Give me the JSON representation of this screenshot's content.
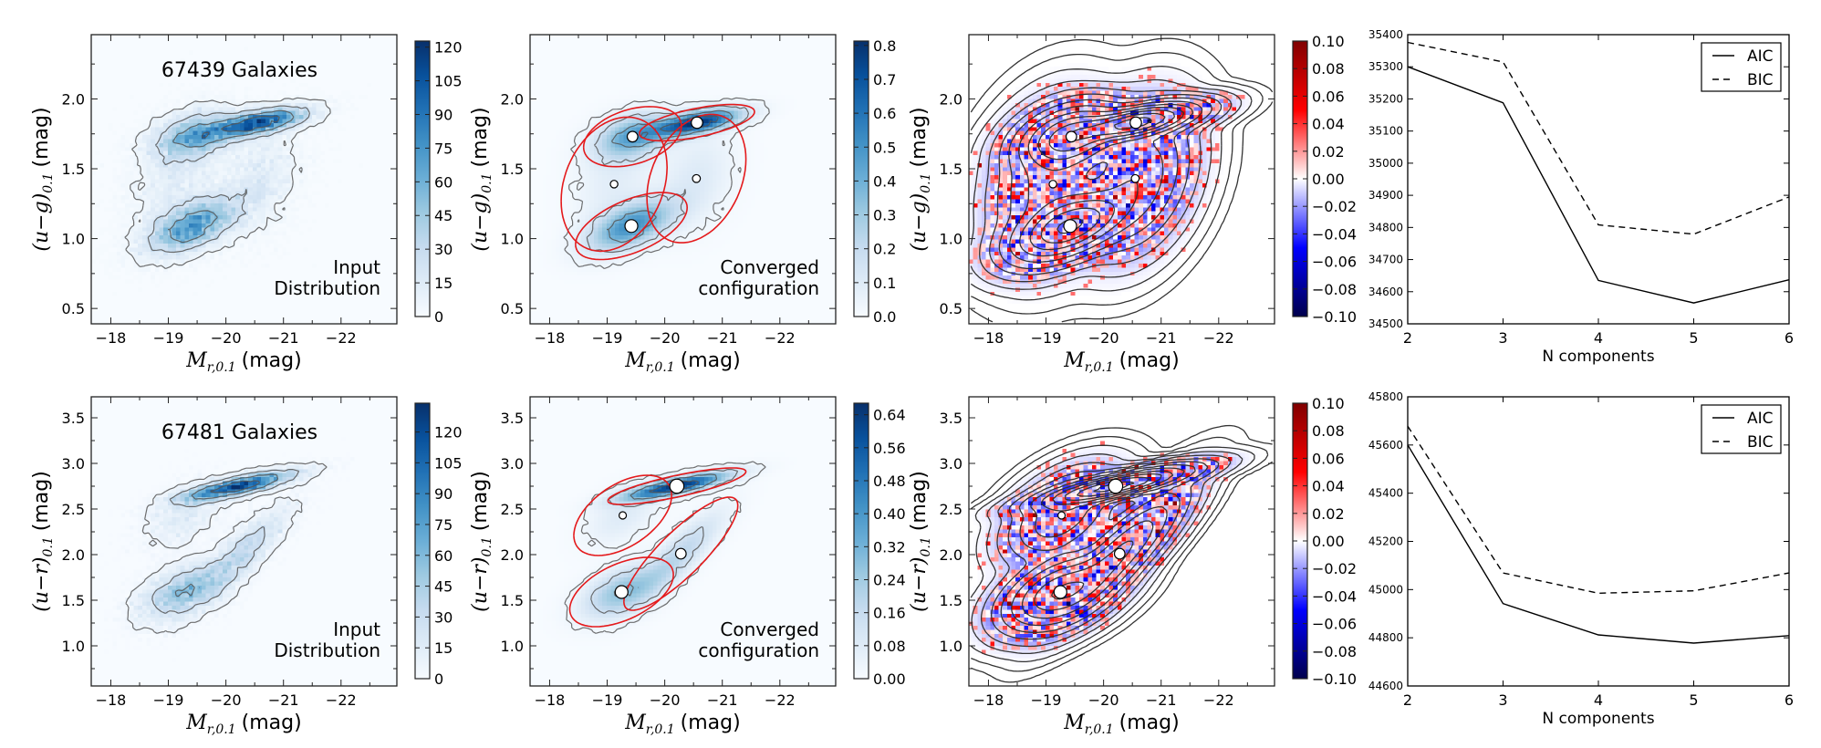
{
  "colormaps": {
    "Blues": [
      "#f7fbff",
      "#deebf7",
      "#c6dbef",
      "#9ecae1",
      "#6baed6",
      "#4292c6",
      "#2171b5",
      "#08519c",
      "#08306b"
    ],
    "seismic": [
      "#00004c",
      "#0000ff",
      "#ffffff",
      "#ff0000",
      "#800000"
    ],
    "contour_input": "#555555",
    "contour_model": "#333333",
    "ellipse": "#e41a1c"
  },
  "chart_data": [
    {
      "type": "heatmap",
      "panel": "input",
      "row": 0,
      "annotation": "67439 Galaxies",
      "label_lines": [
        "Input",
        "Distribution"
      ],
      "xlabel": {
        "symbol": "M",
        "subscript": "r,0.1",
        "unit": "(mag)"
      },
      "ylabel": {
        "symbol": "(u−g)",
        "subscript": "0.1",
        "unit": "(mag)"
      },
      "xlim": [
        -17.66,
        -22.97
      ],
      "ylim": [
        0.39,
        2.46
      ],
      "xticks": [
        -18,
        -19,
        -20,
        -21,
        -22
      ],
      "xtick_labels": [
        "−18",
        "−19",
        "−20",
        "−21",
        "−22"
      ],
      "yticks": [
        0.5,
        1.0,
        1.5,
        2.0
      ],
      "ytick_labels": [
        "0.5",
        "1.0",
        "1.5",
        "2.0"
      ],
      "colormap": "Blues",
      "contours": true,
      "colorbar": {
        "range": [
          0,
          122.7
        ],
        "ticks": [
          0,
          15,
          30,
          45,
          60,
          75,
          90,
          105,
          120
        ],
        "tick_labels": [
          "0",
          "15",
          "30",
          "45",
          "60",
          "75",
          "90",
          "105",
          "120"
        ]
      }
    },
    {
      "type": "heatmap",
      "panel": "model",
      "row": 0,
      "label_lines": [
        "Converged",
        "configuration"
      ],
      "xlabel": {
        "symbol": "M",
        "subscript": "r,0.1",
        "unit": "(mag)"
      },
      "ylabel": {
        "symbol": "(u−g)",
        "subscript": "0.1",
        "unit": "(mag)"
      },
      "xlim": [
        -17.66,
        -22.97
      ],
      "ylim": [
        0.39,
        2.46
      ],
      "xticks": [
        -18,
        -19,
        -20,
        -21,
        -22
      ],
      "xtick_labels": [
        "−18",
        "−19",
        "−20",
        "−21",
        "−22"
      ],
      "yticks": [
        0.5,
        1.0,
        1.5,
        2.0
      ],
      "ytick_labels": [
        "0.5",
        "1.0",
        "1.5",
        "2.0"
      ],
      "colormap": "Blues",
      "contours": true,
      "colorbar": {
        "range": [
          0,
          0.813
        ],
        "ticks": [
          0,
          0.1,
          0.2,
          0.3,
          0.4,
          0.5,
          0.6,
          0.7,
          0.8
        ],
        "tick_labels": [
          "0.0",
          "0.1",
          "0.2",
          "0.3",
          "0.4",
          "0.5",
          "0.6",
          "0.7",
          "0.8"
        ]
      },
      "components": [
        {
          "mean": [
            -19.44,
            1.73
          ],
          "semi_axes": [
            0.85,
            0.215
          ],
          "correlation": -0.35,
          "weight": 0.22
        },
        {
          "mean": [
            -20.56,
            1.83
          ],
          "semi_axes": [
            1.0,
            0.13
          ],
          "correlation": -0.6,
          "weight": 0.25
        },
        {
          "mean": [
            -19.12,
            1.39
          ],
          "semi_axes": [
            0.92,
            0.48
          ],
          "correlation": -0.25,
          "weight": 0.11
        },
        {
          "mean": [
            -19.42,
            1.09
          ],
          "semi_axes": [
            0.97,
            0.24
          ],
          "correlation": -0.55,
          "weight": 0.3
        },
        {
          "mean": [
            -20.55,
            1.43
          ],
          "semi_axes": [
            0.86,
            0.46
          ],
          "correlation": -0.3,
          "weight": 0.12
        }
      ]
    },
    {
      "type": "heatmap",
      "panel": "residual",
      "row": 0,
      "xlabel": {
        "symbol": "M",
        "subscript": "r,0.1",
        "unit": "(mag)"
      },
      "ylabel": {
        "symbol": "(u−g)",
        "subscript": "0.1",
        "unit": "(mag)"
      },
      "xlim": [
        -17.66,
        -22.97
      ],
      "ylim": [
        0.39,
        2.46
      ],
      "xticks": [
        -18,
        -19,
        -20,
        -21,
        -22
      ],
      "xtick_labels": [
        "−18",
        "−19",
        "−20",
        "−21",
        "−22"
      ],
      "yticks": [
        0.5,
        1.0,
        1.5,
        2.0
      ],
      "ytick_labels": [
        "0.5",
        "1.0",
        "1.5",
        "2.0"
      ],
      "colormap": "seismic",
      "colorbar": {
        "range": [
          -0.1,
          0.1
        ],
        "ticks": [
          0.1,
          0.08,
          0.06,
          0.04,
          0.02,
          0.0,
          -0.02,
          -0.04,
          -0.06,
          -0.08,
          -0.1
        ],
        "tick_labels": [
          "0.10",
          "0.08",
          "0.06",
          "0.04",
          "0.02",
          "0.00",
          "−0.02",
          "−0.04",
          "−0.06",
          "−0.08",
          "−0.10"
        ]
      }
    },
    {
      "type": "line",
      "panel": "selection",
      "row": 0,
      "xlabel": "N components",
      "x": [
        2,
        3,
        4,
        5,
        6
      ],
      "xtick_labels": [
        "2",
        "3",
        "4",
        "5",
        "6"
      ],
      "ylim": [
        34500,
        35400
      ],
      "yticks": [
        34500,
        34600,
        34700,
        34800,
        34900,
        35000,
        35100,
        35200,
        35300,
        35400
      ],
      "ytick_labels": [
        "34500",
        "34600",
        "34700",
        "34800",
        "34900",
        "35000",
        "35100",
        "35200",
        "35300",
        "35400"
      ],
      "legend": "top-right",
      "series": [
        {
          "name": "AIC",
          "style": "solid",
          "values": [
            35300,
            35188,
            34635,
            34565,
            34637
          ]
        },
        {
          "name": "BIC",
          "style": "dashed",
          "values": [
            35376,
            35315,
            34808,
            34779,
            34895
          ]
        }
      ]
    },
    {
      "type": "heatmap",
      "panel": "input",
      "row": 1,
      "annotation": "67481 Galaxies",
      "label_lines": [
        "Input",
        "Distribution"
      ],
      "xlabel": {
        "symbol": "M",
        "subscript": "r,0.1",
        "unit": "(mag)"
      },
      "ylabel": {
        "symbol": "(u−r)",
        "subscript": "0.1",
        "unit": "(mag)"
      },
      "xlim": [
        -17.66,
        -22.97
      ],
      "ylim": [
        0.56,
        3.73
      ],
      "xticks": [
        -18,
        -19,
        -20,
        -21,
        -22
      ],
      "xtick_labels": [
        "−18",
        "−19",
        "−20",
        "−21",
        "−22"
      ],
      "yticks": [
        1.0,
        1.5,
        2.0,
        2.5,
        3.0,
        3.5
      ],
      "ytick_labels": [
        "1.0",
        "1.5",
        "2.0",
        "2.5",
        "3.0",
        "3.5"
      ],
      "colormap": "Blues",
      "contours": true,
      "colorbar": {
        "range": [
          0,
          134
        ],
        "ticks": [
          0,
          15,
          30,
          45,
          60,
          75,
          90,
          105,
          120
        ],
        "tick_labels": [
          "0",
          "15",
          "30",
          "45",
          "60",
          "75",
          "90",
          "105",
          "120"
        ]
      }
    },
    {
      "type": "heatmap",
      "panel": "model",
      "row": 1,
      "label_lines": [
        "Converged",
        "configuration"
      ],
      "xlabel": {
        "symbol": "M",
        "subscript": "r,0.1",
        "unit": "(mag)"
      },
      "ylabel": {
        "symbol": "(u−r)",
        "subscript": "0.1",
        "unit": "(mag)"
      },
      "xlim": [
        -17.66,
        -22.97
      ],
      "ylim": [
        0.56,
        3.73
      ],
      "xticks": [
        -18,
        -19,
        -20,
        -21,
        -22
      ],
      "xtick_labels": [
        "−18",
        "−19",
        "−20",
        "−21",
        "−22"
      ],
      "yticks": [
        1.0,
        1.5,
        2.0,
        2.5,
        3.0,
        3.5
      ],
      "ytick_labels": [
        "1.0",
        "1.5",
        "2.0",
        "2.5",
        "3.0",
        "3.5"
      ],
      "colormap": "Blues",
      "contours": true,
      "colorbar": {
        "range": [
          0,
          0.668
        ],
        "ticks": [
          0,
          0.08,
          0.16,
          0.24,
          0.32,
          0.4,
          0.48,
          0.56,
          0.64
        ],
        "tick_labels": [
          "0.00",
          "0.08",
          "0.16",
          "0.24",
          "0.32",
          "0.40",
          "0.48",
          "0.56",
          "0.64"
        ]
      },
      "components": [
        {
          "mean": [
            -20.21,
            2.75
          ],
          "semi_axes": [
            1.2,
            0.2
          ],
          "correlation": -0.8,
          "weight": 0.35
        },
        {
          "mean": [
            -19.27,
            2.43
          ],
          "semi_axes": [
            0.85,
            0.44
          ],
          "correlation": -0.5,
          "weight": 0.1
        },
        {
          "mean": [
            -20.28,
            2.01
          ],
          "semi_axes": [
            0.99,
            0.62
          ],
          "correlation": -0.85,
          "weight": 0.22
        },
        {
          "mean": [
            -19.25,
            1.59
          ],
          "semi_axes": [
            0.9,
            0.38
          ],
          "correlation": -0.5,
          "weight": 0.3
        }
      ]
    },
    {
      "type": "heatmap",
      "panel": "residual",
      "row": 1,
      "xlabel": {
        "symbol": "M",
        "subscript": "r,0.1",
        "unit": "(mag)"
      },
      "ylabel": {
        "symbol": "(u−r)",
        "subscript": "0.1",
        "unit": "(mag)"
      },
      "xlim": [
        -17.66,
        -22.97
      ],
      "ylim": [
        0.56,
        3.73
      ],
      "xticks": [
        -18,
        -19,
        -20,
        -21,
        -22
      ],
      "xtick_labels": [
        "−18",
        "−19",
        "−20",
        "−21",
        "−22"
      ],
      "yticks": [
        1.0,
        1.5,
        2.0,
        2.5,
        3.0,
        3.5
      ],
      "ytick_labels": [
        "1.0",
        "1.5",
        "2.0",
        "2.5",
        "3.0",
        "3.5"
      ],
      "colormap": "seismic",
      "colorbar": {
        "range": [
          -0.1,
          0.1
        ],
        "ticks": [
          0.1,
          0.08,
          0.06,
          0.04,
          0.02,
          0.0,
          -0.02,
          -0.04,
          -0.06,
          -0.08,
          -0.1
        ],
        "tick_labels": [
          "0.10",
          "0.08",
          "0.06",
          "0.04",
          "0.02",
          "0.00",
          "−0.02",
          "−0.04",
          "−0.06",
          "−0.08",
          "−0.10"
        ]
      }
    },
    {
      "type": "line",
      "panel": "selection",
      "row": 1,
      "xlabel": "N components",
      "x": [
        2,
        3,
        4,
        5,
        6
      ],
      "xtick_labels": [
        "2",
        "3",
        "4",
        "5",
        "6"
      ],
      "ylim": [
        44600,
        45800
      ],
      "yticks": [
        44600,
        44800,
        45000,
        45200,
        45400,
        45600,
        45800
      ],
      "ytick_labels": [
        "44600",
        "44800",
        "45000",
        "45200",
        "45400",
        "45600",
        "45800"
      ],
      "legend": "top-right",
      "series": [
        {
          "name": "AIC",
          "style": "solid",
          "values": [
            45600,
            44942,
            44812,
            44778,
            44809
          ]
        },
        {
          "name": "BIC",
          "style": "dashed",
          "values": [
            45678,
            45069,
            44985,
            44995,
            45069
          ]
        }
      ]
    }
  ]
}
